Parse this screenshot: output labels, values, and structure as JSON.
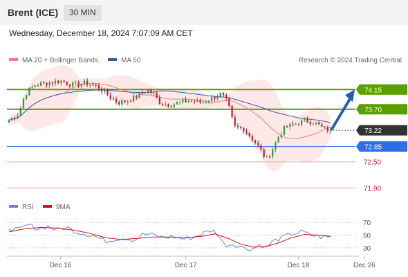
{
  "header": {
    "title": "Brent (ICE)",
    "timeframe": "30 MIN"
  },
  "datetime": "Wednesday, December 18, 2024 7:07:09 AM CET",
  "legend": {
    "ma20_label": "MA 20 + Bollinger Bands",
    "ma50_label": "MA 50",
    "credit": "Research © 2024 Trading Central",
    "rsi_label": "RSI",
    "rsi_ma_label": "9MA"
  },
  "colors": {
    "ma20": "#f08080",
    "ma50": "#3a5a9a",
    "band_fill": "#fde0e0",
    "up": "#2e9e3e",
    "down": "#c02030",
    "green_level": "#5aa000",
    "blue_level": "#2e6ee8",
    "red_level": "#f5a0a0",
    "arrow": "#2a5db0",
    "last_price_bg": "#333333",
    "rsi": "#6b84d8",
    "rsi_ma": "#d01010"
  },
  "chart_data": [
    {
      "type": "candlestick",
      "x_ticks": [
        "Dec 16",
        "Dec 17",
        "Dec 18",
        "Dec 26"
      ],
      "series": [
        {
          "name": "MA 20 + Bollinger Bands"
        },
        {
          "name": "MA 50"
        }
      ],
      "price_levels": [
        {
          "value": "74.15",
          "kind": "resistance"
        },
        {
          "value": "73.70",
          "kind": "resistance"
        },
        {
          "value": "73.22",
          "kind": "last_price"
        },
        {
          "value": "72.85",
          "kind": "pivot"
        },
        {
          "value": "72.50",
          "kind": "support"
        },
        {
          "value": "71.90",
          "kind": "support"
        }
      ],
      "ylim": [
        71.8,
        74.55
      ],
      "close_path": [
        {
          "x": 0,
          "y": 73.45
        },
        {
          "x": 0.03,
          "y": 73.6
        },
        {
          "x": 0.05,
          "y": 74.05
        },
        {
          "x": 0.08,
          "y": 74.25
        },
        {
          "x": 0.12,
          "y": 74.3
        },
        {
          "x": 0.16,
          "y": 74.35
        },
        {
          "x": 0.2,
          "y": 74.25
        },
        {
          "x": 0.24,
          "y": 74.3
        },
        {
          "x": 0.28,
          "y": 74.2
        },
        {
          "x": 0.31,
          "y": 74.0
        },
        {
          "x": 0.34,
          "y": 73.85
        },
        {
          "x": 0.37,
          "y": 73.9
        },
        {
          "x": 0.4,
          "y": 74.0
        },
        {
          "x": 0.43,
          "y": 74.15
        },
        {
          "x": 0.45,
          "y": 74.05
        },
        {
          "x": 0.47,
          "y": 73.85
        },
        {
          "x": 0.5,
          "y": 73.8
        },
        {
          "x": 0.53,
          "y": 73.85
        },
        {
          "x": 0.56,
          "y": 73.9
        },
        {
          "x": 0.6,
          "y": 73.85
        },
        {
          "x": 0.63,
          "y": 73.95
        },
        {
          "x": 0.66,
          "y": 74.05
        },
        {
          "x": 0.68,
          "y": 73.85
        },
        {
          "x": 0.7,
          "y": 73.3
        },
        {
          "x": 0.73,
          "y": 73.25
        },
        {
          "x": 0.76,
          "y": 73.0
        },
        {
          "x": 0.78,
          "y": 72.8
        },
        {
          "x": 0.8,
          "y": 72.55
        },
        {
          "x": 0.82,
          "y": 72.8
        },
        {
          "x": 0.84,
          "y": 73.1
        },
        {
          "x": 0.86,
          "y": 73.3
        },
        {
          "x": 0.89,
          "y": 73.35
        },
        {
          "x": 0.92,
          "y": 73.45
        },
        {
          "x": 0.95,
          "y": 73.4
        },
        {
          "x": 0.98,
          "y": 73.25
        },
        {
          "x": 1.0,
          "y": 73.22
        }
      ],
      "arrow": {
        "from": 73.22,
        "to": 74.15
      }
    },
    {
      "type": "line",
      "series": [
        {
          "name": "RSI"
        },
        {
          "name": "9MA"
        }
      ],
      "y_ticks": [
        "70",
        "50",
        "30"
      ],
      "ylim": [
        20,
        80
      ],
      "rsi_path": [
        {
          "x": 0,
          "y": 62
        },
        {
          "x": 0.03,
          "y": 58
        },
        {
          "x": 0.06,
          "y": 66
        },
        {
          "x": 0.09,
          "y": 60
        },
        {
          "x": 0.12,
          "y": 64
        },
        {
          "x": 0.15,
          "y": 58
        },
        {
          "x": 0.18,
          "y": 62
        },
        {
          "x": 0.21,
          "y": 55
        },
        {
          "x": 0.24,
          "y": 52
        },
        {
          "x": 0.27,
          "y": 48
        },
        {
          "x": 0.3,
          "y": 40
        },
        {
          "x": 0.33,
          "y": 44
        },
        {
          "x": 0.36,
          "y": 46
        },
        {
          "x": 0.39,
          "y": 42
        },
        {
          "x": 0.42,
          "y": 52
        },
        {
          "x": 0.45,
          "y": 50
        },
        {
          "x": 0.48,
          "y": 46
        },
        {
          "x": 0.51,
          "y": 48
        },
        {
          "x": 0.54,
          "y": 44
        },
        {
          "x": 0.57,
          "y": 46
        },
        {
          "x": 0.6,
          "y": 52
        },
        {
          "x": 0.63,
          "y": 58
        },
        {
          "x": 0.65,
          "y": 52
        },
        {
          "x": 0.67,
          "y": 34
        },
        {
          "x": 0.7,
          "y": 36
        },
        {
          "x": 0.73,
          "y": 30
        },
        {
          "x": 0.76,
          "y": 28
        },
        {
          "x": 0.78,
          "y": 36
        },
        {
          "x": 0.8,
          "y": 30
        },
        {
          "x": 0.82,
          "y": 40
        },
        {
          "x": 0.85,
          "y": 46
        },
        {
          "x": 0.88,
          "y": 52
        },
        {
          "x": 0.91,
          "y": 55
        },
        {
          "x": 0.94,
          "y": 50
        },
        {
          "x": 0.97,
          "y": 47
        },
        {
          "x": 1.0,
          "y": 47
        }
      ],
      "rsi_ma_path": [
        {
          "x": 0,
          "y": 55
        },
        {
          "x": 0.05,
          "y": 60
        },
        {
          "x": 0.1,
          "y": 62
        },
        {
          "x": 0.15,
          "y": 61
        },
        {
          "x": 0.2,
          "y": 58
        },
        {
          "x": 0.25,
          "y": 53
        },
        {
          "x": 0.3,
          "y": 46
        },
        {
          "x": 0.35,
          "y": 43
        },
        {
          "x": 0.4,
          "y": 45
        },
        {
          "x": 0.45,
          "y": 47
        },
        {
          "x": 0.5,
          "y": 47
        },
        {
          "x": 0.55,
          "y": 46
        },
        {
          "x": 0.6,
          "y": 48
        },
        {
          "x": 0.64,
          "y": 52
        },
        {
          "x": 0.68,
          "y": 45
        },
        {
          "x": 0.72,
          "y": 36
        },
        {
          "x": 0.76,
          "y": 31
        },
        {
          "x": 0.8,
          "y": 32
        },
        {
          "x": 0.84,
          "y": 38
        },
        {
          "x": 0.88,
          "y": 46
        },
        {
          "x": 0.92,
          "y": 51
        },
        {
          "x": 0.96,
          "y": 50
        },
        {
          "x": 1.0,
          "y": 48
        }
      ]
    }
  ]
}
